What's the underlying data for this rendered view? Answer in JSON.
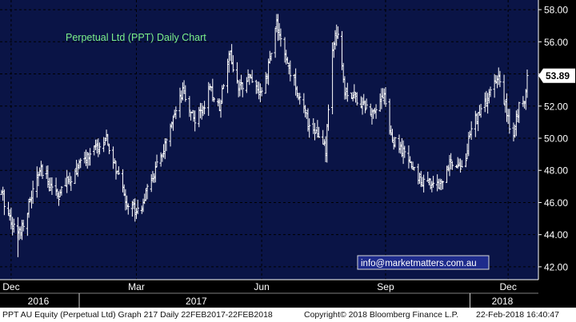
{
  "chart_data": {
    "type": "ohlc",
    "title": "Perpetual Ltd (PPT) Daily Chart",
    "last_price_label": "53.89",
    "watermark": "info@marketmatters.com.au",
    "ylim": [
      41.2,
      58.6
    ],
    "y_ticks": [
      {
        "value": 42,
        "label": "42.00"
      },
      {
        "value": 44,
        "label": "44.00"
      },
      {
        "value": 46,
        "label": "46.00"
      },
      {
        "value": 48,
        "label": "48.00"
      },
      {
        "value": 50,
        "label": "50.00"
      },
      {
        "value": 52,
        "label": "52.00"
      },
      {
        "value": 54,
        "label": "54.00"
      },
      {
        "value": 56,
        "label": "56.00"
      },
      {
        "value": 58,
        "label": "58.00"
      }
    ],
    "x_ticks": [
      {
        "date": "2017-03-01",
        "label": "Dec"
      },
      {
        "date": "2017-06-01",
        "label": "Mar"
      },
      {
        "date": "2017-09-01",
        "label": "Jun"
      },
      {
        "date": "2017-12-01",
        "label": "Sep"
      },
      {
        "date": "2018-03-01",
        "label": "Dec"
      }
    ],
    "year_labels": [
      {
        "date": "2017-01-15",
        "label": "2016"
      },
      {
        "date": "2017-07-15",
        "label": "2017"
      },
      {
        "date": "2018-03-15",
        "label": "2018"
      }
    ],
    "year_separators": [
      "2017-04-20",
      "2018-02-01"
    ],
    "anchors": [
      [
        "2017-02-22",
        46.5
      ],
      [
        "2017-03-05",
        44.0
      ],
      [
        "2017-03-08",
        44.3
      ],
      [
        "2017-03-22",
        48.0
      ],
      [
        "2017-04-05",
        46.5
      ],
      [
        "2017-04-20",
        48.3
      ],
      [
        "2017-04-30",
        49.2
      ],
      [
        "2017-05-10",
        49.8
      ],
      [
        "2017-05-25",
        46.0
      ],
      [
        "2017-06-03",
        45.5
      ],
      [
        "2017-06-15",
        48.0
      ],
      [
        "2017-06-22",
        49.5
      ],
      [
        "2017-07-05",
        52.8
      ],
      [
        "2017-07-15",
        51.0
      ],
      [
        "2017-07-25",
        53.0
      ],
      [
        "2017-08-01",
        52.0
      ],
      [
        "2017-08-08",
        55.5
      ],
      [
        "2017-08-15",
        53.0
      ],
      [
        "2017-08-22",
        54.0
      ],
      [
        "2017-08-28",
        53.2
      ],
      [
        "2017-09-02",
        52.5
      ],
      [
        "2017-09-08",
        55.5
      ],
      [
        "2017-09-12",
        57.2
      ],
      [
        "2017-09-18",
        55.0
      ],
      [
        "2017-09-25",
        53.5
      ],
      [
        "2017-10-05",
        51.0
      ],
      [
        "2017-10-10",
        50.5
      ],
      [
        "2017-10-18",
        49.2
      ],
      [
        "2017-10-23",
        55.5
      ],
      [
        "2017-10-27",
        56.8
      ],
      [
        "2017-11-01",
        53.0
      ],
      [
        "2017-11-10",
        52.5
      ],
      [
        "2017-11-20",
        51.6
      ],
      [
        "2017-11-30",
        52.8
      ],
      [
        "2017-12-05",
        50.0
      ],
      [
        "2017-12-15",
        49.0
      ],
      [
        "2017-12-25",
        47.5
      ],
      [
        "2018-01-01",
        47.2
      ],
      [
        "2018-01-10",
        47.2
      ],
      [
        "2018-01-20",
        48.8
      ],
      [
        "2018-01-27",
        48.0
      ],
      [
        "2018-02-03",
        51.0
      ],
      [
        "2018-02-10",
        51.8
      ],
      [
        "2018-02-17",
        53.0
      ],
      [
        "2018-02-23",
        53.8
      ],
      [
        "2018-02-27",
        52.0
      ],
      [
        "2018-03-04",
        49.8
      ],
      [
        "2018-03-09",
        52.0
      ],
      [
        "2018-03-13",
        52.5
      ],
      [
        "2018-03-15",
        53.9
      ]
    ]
  },
  "footer": {
    "left": "PPT AU Equity (Perpetual Ltd) Graph 217  Daily 22FEB2017-22FEB2018",
    "middle": "Copyright© 2018 Bloomberg Finance L.P.",
    "right": "22-Feb-2018 16:40:47"
  },
  "colors": {
    "plot_background": "#0a1446",
    "grid": "#000000",
    "bars": "#ffffff",
    "title": "#7cf08a",
    "watermark_text": "#ffffff",
    "watermark_border": "#d8d8d8",
    "watermark_background": "#1e2b8c",
    "axis_text": "#ffffff",
    "last_price_background": "#ffffff",
    "last_price_text": "#000000"
  }
}
